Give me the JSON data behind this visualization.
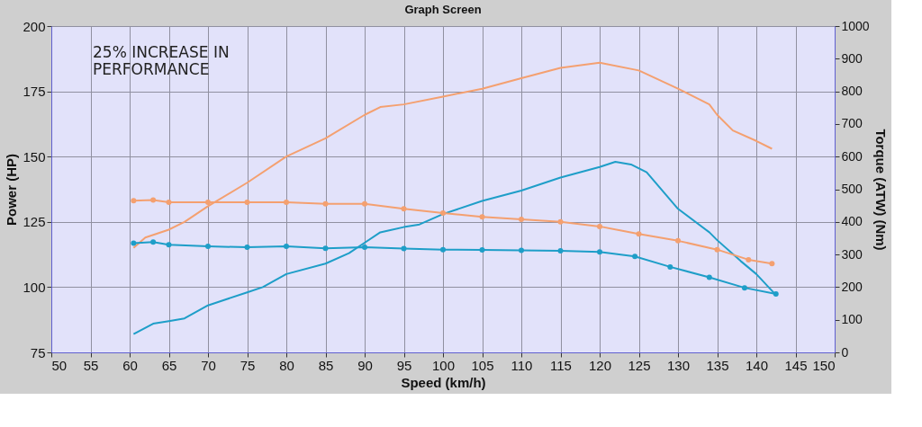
{
  "chart_data": {
    "type": "line",
    "title": "Graph Screen",
    "xlabel": "Speed (km/h)",
    "ylabel": "Power (HP)",
    "y2label": "Torque (ATW) (Nm)",
    "annotations": [
      "25% INCREASE IN\nPERFORMANCE"
    ],
    "xlim": [
      50,
      150
    ],
    "xticks": [
      50,
      55,
      60,
      65,
      70,
      75,
      80,
      85,
      90,
      95,
      100,
      105,
      110,
      115,
      120,
      125,
      130,
      135,
      140,
      145,
      150
    ],
    "ylim": [
      75,
      200
    ],
    "yticks": [
      75,
      100,
      125,
      150,
      175,
      200
    ],
    "y2lim": [
      0,
      1000
    ],
    "y2ticks": [
      0,
      100,
      200,
      300,
      400,
      500,
      600,
      700,
      800,
      900,
      1000
    ],
    "grid": true,
    "line_style": "solid",
    "series": [
      {
        "color": "#f4a070",
        "marker": "none",
        "x": [
          60.5,
          62,
          65,
          67,
          70,
          75,
          80,
          85,
          90,
          92,
          95,
          100,
          105,
          110,
          115,
          120,
          125,
          130,
          134,
          135,
          137,
          140,
          142
        ],
        "values": [
          115,
          119,
          122,
          125,
          131,
          140,
          150,
          157,
          166,
          169,
          170,
          173,
          176,
          180,
          184,
          186,
          183,
          176,
          170,
          166,
          160,
          156,
          153
        ]
      },
      {
        "color": "#1e9ec8",
        "marker": "none",
        "x": [
          60.5,
          63,
          65,
          67,
          70,
          75,
          77,
          80,
          85,
          88,
          90,
          92,
          95,
          97,
          100,
          105,
          110,
          115,
          120,
          122,
          124,
          126,
          130,
          134,
          135,
          138,
          140,
          142.5
        ],
        "values": [
          82,
          86,
          87,
          88,
          93,
          98,
          100,
          105,
          109,
          113,
          117,
          121,
          123,
          124,
          128,
          133,
          137,
          142,
          146,
          148,
          147,
          144,
          130,
          121,
          118,
          110,
          105,
          97
        ]
      },
      {
        "color": "#f4a070",
        "marker": "circle",
        "axis": "y2",
        "x": [
          60.5,
          63,
          65,
          70,
          75,
          80,
          85,
          90,
          95,
          100,
          105,
          110,
          115,
          120,
          125,
          130,
          135,
          139,
          142
        ],
        "values": [
          465,
          467,
          460,
          460,
          460,
          460,
          455,
          455,
          440,
          427,
          415,
          408,
          400,
          386,
          363,
          342,
          315,
          284,
          272
        ]
      },
      {
        "color": "#1e9ec8",
        "marker": "circle",
        "axis": "y2",
        "x": [
          60.5,
          63,
          65,
          70,
          75,
          80,
          85,
          90,
          95,
          100,
          105,
          110,
          115,
          120,
          124.5,
          129,
          134,
          138.5,
          142.5
        ],
        "values": [
          335,
          338,
          330,
          325,
          322,
          325,
          319,
          322,
          318,
          315,
          314,
          313,
          311,
          308,
          294,
          262,
          230,
          198,
          179
        ]
      }
    ]
  }
}
